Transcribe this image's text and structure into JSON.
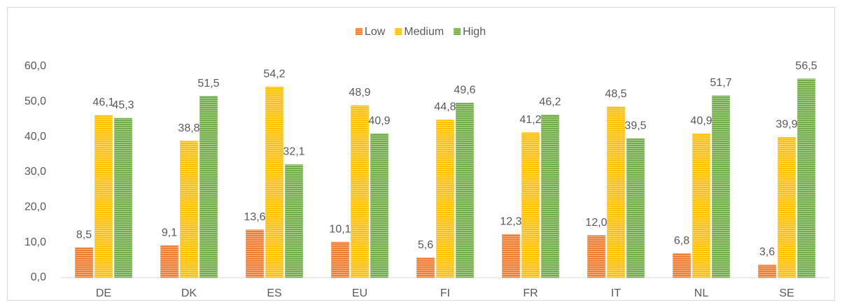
{
  "chart_data": {
    "type": "bar",
    "categories": [
      "DE",
      "DK",
      "ES",
      "EU",
      "FI",
      "FR",
      "IT",
      "NL",
      "SE"
    ],
    "series": [
      {
        "name": "Low",
        "color": "#ED7D31",
        "values": [
          8.5,
          9.1,
          13.6,
          10.1,
          5.6,
          12.3,
          12.0,
          6.8,
          3.6
        ],
        "value_labels": [
          "8,5",
          "9,1",
          "13,6",
          "10,1",
          "5,6",
          "12,3",
          "12,0",
          "6,8",
          "3,6"
        ]
      },
      {
        "name": "Medium",
        "color": "#FFC000",
        "values": [
          46.1,
          38.8,
          54.2,
          48.9,
          44.8,
          41.2,
          48.5,
          40.9,
          39.9
        ],
        "value_labels": [
          "46,1",
          "38,8",
          "54,2",
          "48,9",
          "44,8",
          "41,2",
          "48,5",
          "40,9",
          "39,9"
        ]
      },
      {
        "name": "High",
        "color": "#70AD47",
        "values": [
          45.3,
          51.5,
          32.1,
          40.9,
          49.6,
          46.2,
          39.5,
          51.7,
          56.5
        ],
        "value_labels": [
          "45,3",
          "51,5",
          "32,1",
          "40,9",
          "49,6",
          "46,2",
          "39,5",
          "51,7",
          "56,5"
        ]
      }
    ],
    "ylim": [
      0,
      60
    ],
    "yticks": [
      {
        "value": 0,
        "label": "0,0"
      },
      {
        "value": 10,
        "label": "10,0"
      },
      {
        "value": 20,
        "label": "20,0"
      },
      {
        "value": 30,
        "label": "30,0"
      },
      {
        "value": 40,
        "label": "40,0"
      },
      {
        "value": 50,
        "label": "50,0"
      },
      {
        "value": 60,
        "label": "60,0"
      }
    ],
    "grid": false,
    "legend": "top"
  }
}
